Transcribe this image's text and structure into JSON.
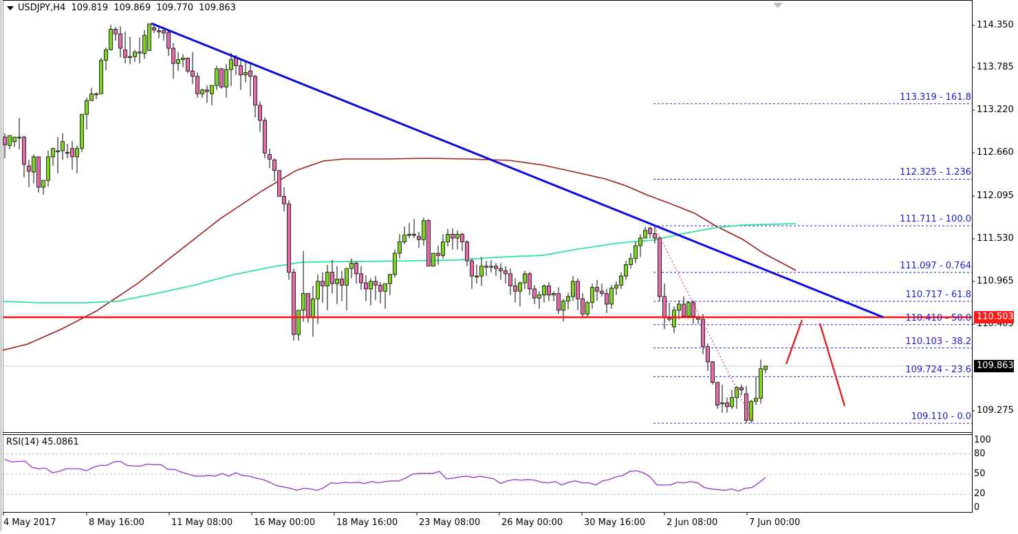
{
  "header": {
    "symbol_timeframe": "USDJPY,H4",
    "open": "109.819",
    "high": "109.869",
    "low": "109.770",
    "close": "109.863"
  },
  "rsi": {
    "label": "RSI(14) 45.0861",
    "period": 14,
    "value": 45.0861,
    "levels": [
      "100",
      "80",
      "50",
      "20",
      "0"
    ]
  },
  "price_axis": {
    "ticks": [
      "114.350",
      "113.785",
      "113.220",
      "112.660",
      "112.095",
      "111.530",
      "110.965",
      "110.405",
      "109.275"
    ],
    "current_price_tag": "109.863",
    "horizontal_level_tag": "110.503"
  },
  "time_axis": {
    "ticks": [
      "4 May 2017",
      "8 May 16:00",
      "11 May 08:00",
      "16 May 00:00",
      "18 May 16:00",
      "23 May 08:00",
      "26 May 00:00",
      "30 May 16:00",
      "2 Jun 08:00",
      "7 Jun 00:00"
    ]
  },
  "fibonacci": [
    {
      "label": "113.319 - 161.8",
      "price": 113.319
    },
    {
      "label": "112.325 - 1.236",
      "price": 112.325
    },
    {
      "label": "111.711 - 100.0",
      "price": 111.711
    },
    {
      "label": "111.097 - 0.764",
      "price": 111.097
    },
    {
      "label": "110.717 - 61.8",
      "price": 110.717
    },
    {
      "label": "110.410 - 50.0",
      "price": 110.41
    },
    {
      "label": "110.103 - 38.2",
      "price": 110.103
    },
    {
      "label": "109.724 - 23.6",
      "price": 109.724
    },
    {
      "label": "109.110 - 0.0",
      "price": 109.11
    }
  ],
  "colors": {
    "bull_candle": "#7fd321",
    "bear_candle": "#e46aa8",
    "wick": "#000000",
    "trendline": "#0a0adc",
    "sma100": "#9b1c1c",
    "sma200": "#2ee39a",
    "support_line": "#ff1010",
    "fib": "#1e1ec8",
    "rsi_line": "#9b3fc7",
    "price_tag_red": "#ff1a1a",
    "price_tag_black": "#000000"
  },
  "chart_data": {
    "type": "candlestick",
    "title": "USDJPY,H4",
    "instrument": "USDJPY",
    "timeframe": "H4",
    "ohlc_current": {
      "open": 109.819,
      "high": 109.869,
      "low": 109.77,
      "close": 109.863
    },
    "x_tick_labels": [
      "4 May 2017",
      "8 May 16:00",
      "11 May 08:00",
      "16 May 00:00",
      "18 May 16:00",
      "23 May 08:00",
      "26 May 00:00",
      "30 May 16:00",
      "2 Jun 08:00",
      "7 Jun 00:00"
    ],
    "y_tick_labels": [
      "114.350",
      "113.785",
      "113.220",
      "112.660",
      "112.095",
      "111.530",
      "110.965",
      "110.405",
      "109.275"
    ],
    "ylim": [
      109.05,
      114.65
    ],
    "approx_swings": [
      {
        "label": "start",
        "price": 112.9
      },
      {
        "label": "low 5 May",
        "price": 112.1
      },
      {
        "label": "high 10-11 May",
        "price": 114.37
      },
      {
        "label": "low 17 May",
        "price": 110.25
      },
      {
        "label": "high 23 May",
        "price": 112.1
      },
      {
        "label": "low 31 May",
        "price": 110.5
      },
      {
        "label": "high 2 Jun",
        "price": 111.711
      },
      {
        "label": "low 6 Jun",
        "price": 109.11
      },
      {
        "label": "last close",
        "price": 109.863
      }
    ],
    "overlays": [
      {
        "name": "Bearish trendline",
        "from": {
          "label": "11 May high",
          "price": 114.37
        },
        "to": {
          "label": "projection",
          "price": 110.5
        }
      },
      {
        "name": "Moving average (red, ~100)",
        "note": "rises from ~110.1 to plateau ~112.6 then falls to ~111.1"
      },
      {
        "name": "Moving average (green, ~200)",
        "note": "rises slowly from ~110.8 to ~111.7"
      },
      {
        "name": "Horizontal support/resistance",
        "price": 110.503
      }
    ],
    "fibonacci_levels": [
      {
        "price": 113.319,
        "ratio": "161.8"
      },
      {
        "price": 112.325,
        "ratio": "1.236"
      },
      {
        "price": 111.711,
        "ratio": "100.0"
      },
      {
        "price": 111.097,
        "ratio": "0.764"
      },
      {
        "price": 110.717,
        "ratio": "61.8"
      },
      {
        "price": 110.41,
        "ratio": "50.0"
      },
      {
        "price": 110.103,
        "ratio": "38.2"
      },
      {
        "price": 109.724,
        "ratio": "23.6"
      },
      {
        "price": 109.11,
        "ratio": "0.0"
      }
    ],
    "indicator": {
      "name": "RSI(14)",
      "value": 45.0861,
      "ylim": [
        0,
        100
      ],
      "levels": [
        80,
        50,
        20
      ],
      "approx_values": [
        72,
        68,
        69,
        69,
        60,
        58,
        59,
        52,
        54,
        58,
        58,
        58,
        55,
        60,
        63,
        63,
        68,
        69,
        63,
        62,
        62,
        65,
        64,
        64,
        57,
        57,
        53,
        50,
        47,
        47,
        48,
        47,
        51,
        47,
        52,
        48,
        47,
        44,
        42,
        38,
        33,
        31,
        29,
        26,
        29,
        28,
        26,
        30,
        37,
        36,
        38,
        37,
        38,
        36,
        39,
        37,
        39,
        40,
        40,
        44,
        50,
        51,
        51,
        51,
        54,
        43,
        44,
        46,
        47,
        45,
        47,
        45,
        43,
        36,
        40,
        42,
        41,
        42,
        41,
        38,
        37,
        39,
        34,
        38,
        40,
        37,
        37,
        34,
        40,
        42,
        46,
        48,
        54,
        55,
        52,
        46,
        34,
        34,
        34,
        38,
        37,
        39,
        37,
        30,
        28,
        27,
        26,
        28,
        25,
        29,
        30,
        37,
        45
      ],
      "xlabel": "",
      "ylabel": ""
    },
    "annotations": [
      {
        "type": "arrow_path",
        "color": "red",
        "note": "projected bounce up toward 110.50 then decline"
      },
      {
        "type": "dotted_line",
        "color": "red",
        "note": "Fibonacci anchor from 111.711 high to 109.110 low"
      }
    ]
  }
}
